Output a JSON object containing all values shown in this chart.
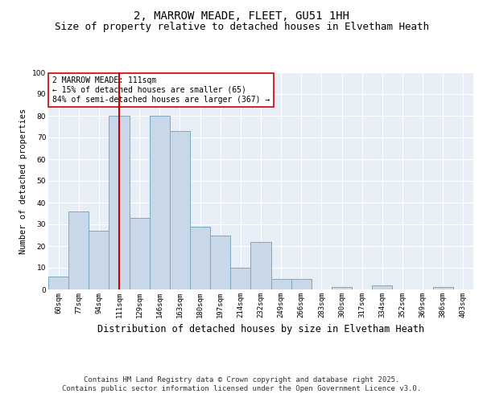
{
  "title": "2, MARROW MEADE, FLEET, GU51 1HH",
  "subtitle": "Size of property relative to detached houses in Elvetham Heath",
  "xlabel": "Distribution of detached houses by size in Elvetham Heath",
  "ylabel": "Number of detached properties",
  "categories": [
    "60sqm",
    "77sqm",
    "94sqm",
    "111sqm",
    "129sqm",
    "146sqm",
    "163sqm",
    "180sqm",
    "197sqm",
    "214sqm",
    "232sqm",
    "249sqm",
    "266sqm",
    "283sqm",
    "300sqm",
    "317sqm",
    "334sqm",
    "352sqm",
    "369sqm",
    "386sqm",
    "403sqm"
  ],
  "values": [
    6,
    36,
    27,
    80,
    33,
    80,
    73,
    29,
    25,
    10,
    22,
    5,
    5,
    0,
    1,
    0,
    2,
    0,
    0,
    1,
    0
  ],
  "bar_color": "#c8d8e8",
  "bar_edge_color": "#7aaabf",
  "highlight_index": 3,
  "highlight_color": "#cc0000",
  "annotation_text": "2 MARROW MEADE: 111sqm\n← 15% of detached houses are smaller (65)\n84% of semi-detached houses are larger (367) →",
  "annotation_box_color": "#ffffff",
  "annotation_border_color": "#cc0000",
  "ylim": [
    0,
    100
  ],
  "yticks": [
    0,
    10,
    20,
    30,
    40,
    50,
    60,
    70,
    80,
    90,
    100
  ],
  "background_color": "#e8eef5",
  "footer_line1": "Contains HM Land Registry data © Crown copyright and database right 2025.",
  "footer_line2": "Contains public sector information licensed under the Open Government Licence v3.0.",
  "title_fontsize": 10,
  "subtitle_fontsize": 9,
  "xlabel_fontsize": 8.5,
  "ylabel_fontsize": 7.5,
  "tick_fontsize": 6.5,
  "annotation_fontsize": 7,
  "footer_fontsize": 6.5
}
